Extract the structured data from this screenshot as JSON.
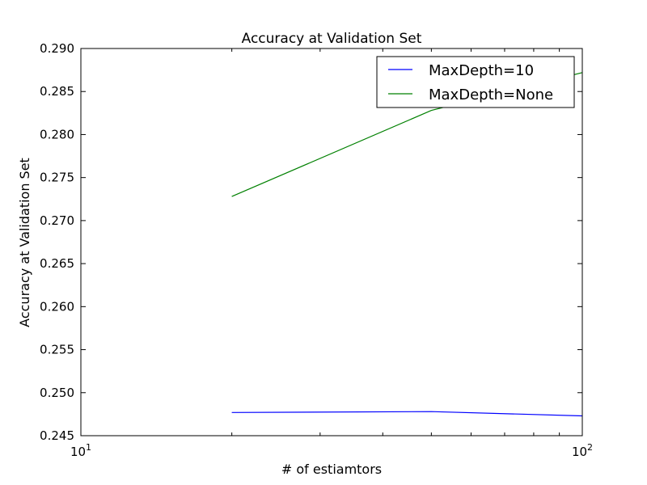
{
  "chart_data": {
    "type": "line",
    "title": "Accuracy at Validation Set",
    "xlabel": "# of estiamtors",
    "ylabel": "Accuracy at Validation Set",
    "xscale": "log",
    "xlim": [
      10,
      100
    ],
    "ylim": [
      0.245,
      0.29
    ],
    "x_tick_labels": [
      {
        "base": "10",
        "exp": "1",
        "value": 10
      },
      {
        "base": "10",
        "exp": "2",
        "value": 100
      }
    ],
    "y_tick_labels": [
      "0.245",
      "0.250",
      "0.255",
      "0.260",
      "0.265",
      "0.270",
      "0.275",
      "0.280",
      "0.285",
      "0.290"
    ],
    "y_ticks": [
      0.245,
      0.25,
      0.255,
      0.26,
      0.265,
      0.27,
      0.275,
      0.28,
      0.285,
      0.29
    ],
    "grid": false,
    "legend_position": "top-right",
    "series": [
      {
        "name": "MaxDepth=10",
        "color": "#0000ff",
        "x": [
          20,
          50,
          100
        ],
        "y": [
          0.2477,
          0.2478,
          0.2473
        ]
      },
      {
        "name": "MaxDepth=None",
        "color": "#008000",
        "x": [
          20,
          50,
          100
        ],
        "y": [
          0.2728,
          0.2828,
          0.2872
        ]
      }
    ]
  }
}
